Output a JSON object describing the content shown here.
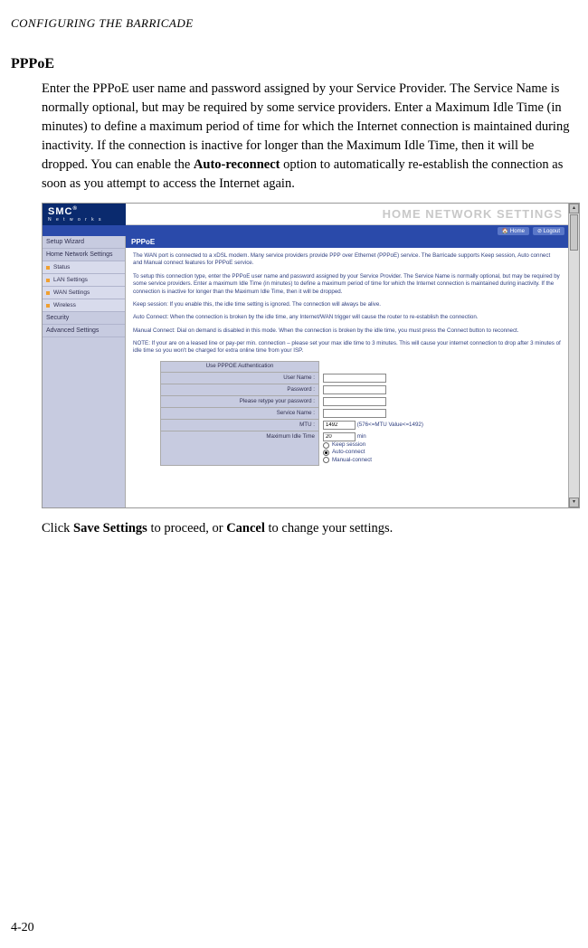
{
  "runningHead": "CONFIGURING THE BARRICADE",
  "sectionTitle": "PPPoE",
  "para1_a": "Enter the PPPoE user name and password assigned by your Service Provider. The Service Name is normally optional, but may be required by some service providers. Enter a Maximum Idle Time (in minutes) to define a maximum period of time for which the Internet connection is maintained during inactivity. If the connection is inactive for longer than the Maximum Idle Time, then it will be dropped. You can enable the ",
  "para1_bold": "Auto-reconnect",
  "para1_b": " option to automatically re-establish the connection as soon as you attempt to access the Internet again.",
  "para2_a": "Click ",
  "para2_b1": "Save Settings",
  "para2_c": " to proceed, or ",
  "para2_b2": "Cancel",
  "para2_d": " to change your settings.",
  "pageNum": "4-20",
  "ui": {
    "logo": "SMC",
    "logoReg": "®",
    "logoSub": "N e t w o r k s",
    "bannerTitle": "HOME NETWORK SETTINGS",
    "subbar": {
      "home": "Home",
      "logout": "Logout"
    },
    "sidebar": {
      "items": [
        {
          "label": "Setup Wizard",
          "sub": false
        },
        {
          "label": "Home Network Settings",
          "sub": false
        },
        {
          "label": "Status",
          "sub": true
        },
        {
          "label": "LAN Settings",
          "sub": true
        },
        {
          "label": "WAN Settings",
          "sub": true
        },
        {
          "label": "Wireless",
          "sub": true
        },
        {
          "label": "Security",
          "sub": false
        },
        {
          "label": "Advanced Settings",
          "sub": false
        }
      ]
    },
    "panelTitle": "PPPoE",
    "desc": {
      "p1": "The WAN port is connected to a xDSL modem. Many service providers provide PPP over Ethernet (PPPoE) service. The Barricade supports Keep session, Auto connect and Manual connect features for PPPoE service.",
      "p2": "To setup this connection type, enter the PPPoE user name and password assigned by your Service Provider. The Service Name is normally optional, but may be required by some service providers. Enter a maximum Idle Time (in minutes) to define a maximum period of time for which the Internet connection is maintained during inactivity. If the connection is inactive for longer than the Maximum Idle Time, then it will be dropped.",
      "p3": "Keep session: If you enable this, the idle time setting is ignored. The connection will always be alive.",
      "p4": "Auto Connect: When the connection is broken by the idle time, any Internet/WAN trigger will cause the router to re-establish the connection.",
      "p5": "Manual Connect: Dial on demand is disabled in this mode. When the connection is broken by the idle time, you must press the Connect button to reconnect.",
      "p6": "NOTE: If your are on a leased line or pay-per min. connection – please set your max idle time to 3 minutes. This will cause your internet connection to drop after 3 minutes of idle time so you won't be charged for extra online time from your ISP."
    },
    "form": {
      "header": "Use PPPOE Authentication",
      "rows": {
        "username": "User Name :",
        "password": "Password :",
        "retype": "Please retype your password :",
        "service": "Service Name :",
        "mtu": "MTU :",
        "mtuValue": "1492",
        "mtuHint": "(576<=MTU Value<=1492)",
        "idle": "Maximum Idle Time",
        "idleValue": "20",
        "idleUnit": "min",
        "opt1": "Keep session",
        "opt2": "Auto-connect",
        "opt3": "Manual-connect"
      }
    }
  }
}
